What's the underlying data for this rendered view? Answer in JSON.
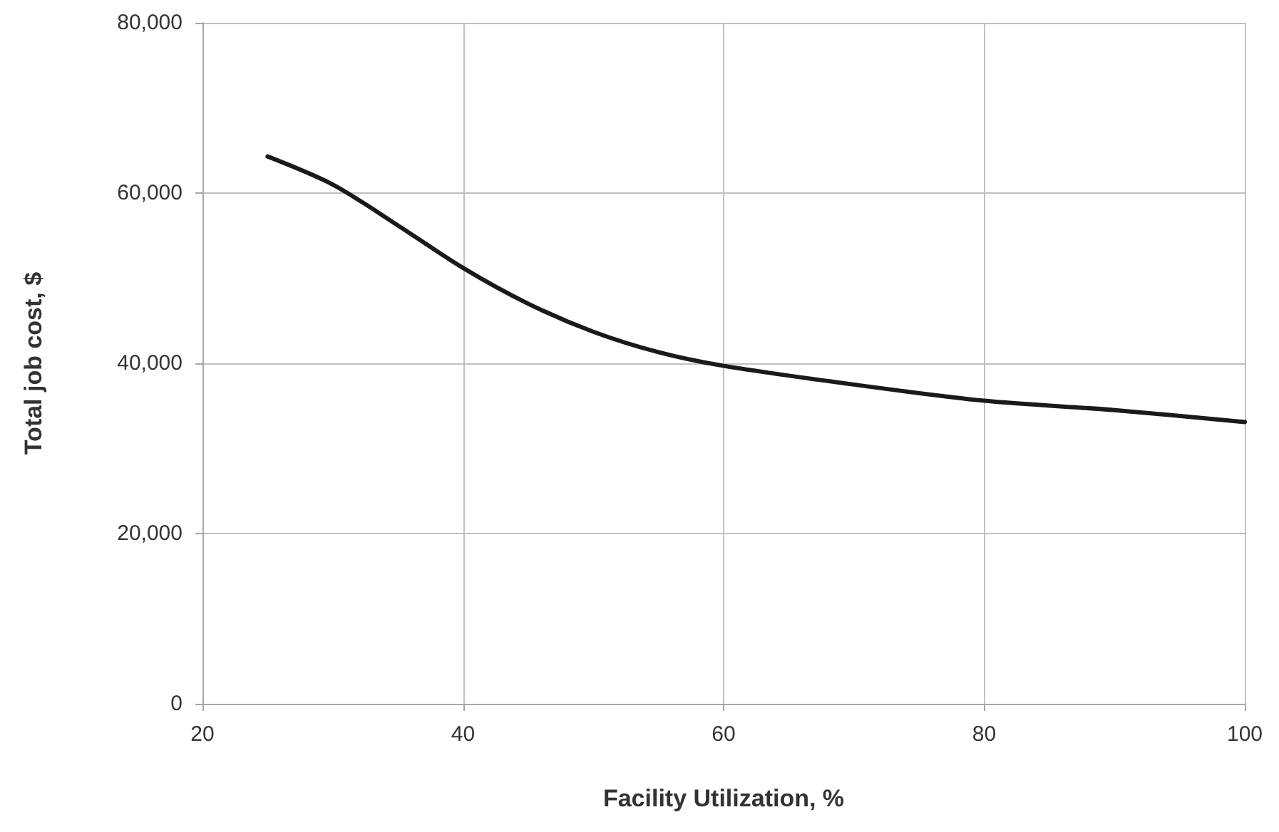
{
  "chart_data": {
    "type": "line",
    "xlabel": "Facility Utilization, %",
    "ylabel": "Total job cost, $",
    "x": [
      25,
      30,
      35,
      40,
      45,
      50,
      55,
      60,
      70,
      80,
      90,
      100
    ],
    "series": [
      {
        "color": "#1a1a1a",
        "values": [
          64300,
          61000,
          56200,
          51200,
          47000,
          43700,
          41300,
          39700,
          37500,
          35600,
          34500,
          33100
        ]
      }
    ],
    "xlim": [
      20,
      100
    ],
    "xticks": [
      20,
      40,
      60,
      80,
      100
    ],
    "ylim": [
      0,
      80000
    ],
    "yticks": [
      {
        "value": 0,
        "label": "0"
      },
      {
        "value": 20000,
        "label": "20,000"
      },
      {
        "value": 40000,
        "label": "40,000"
      },
      {
        "value": 60000,
        "label": "60,000"
      },
      {
        "value": 80000,
        "label": "80,000"
      }
    ],
    "grid": true,
    "marker": "none",
    "line_style": "solid"
  }
}
